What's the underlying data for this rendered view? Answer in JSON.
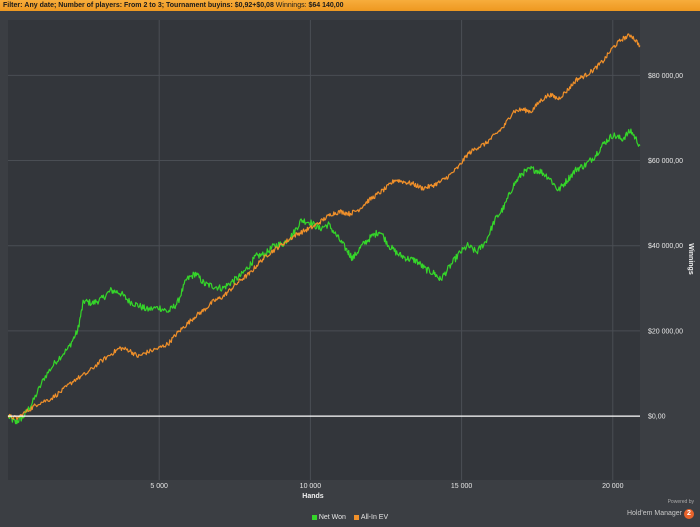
{
  "filter": {
    "label": "Filter:",
    "date": "Any date;",
    "players": "Number of players: From 2 to 3;",
    "buyins": "Tournament buyins: $0,92+$0,08",
    "winnings_label": "Winnings:",
    "winnings_value": "$64 140,00"
  },
  "footer": {
    "powered_by": "Powered by",
    "brand": "Hold'em Manager",
    "brand_badge": "2"
  },
  "chart_data": {
    "type": "line",
    "xlabel": "Hands",
    "ylabel": "Winnings",
    "xlim": [
      0,
      20900
    ],
    "ylim": [
      -15000,
      93000
    ],
    "x_ticks": [
      5000,
      10000,
      15000,
      20000
    ],
    "x_tick_labels": [
      "5 000",
      "10 000",
      "15 000",
      "20 000"
    ],
    "y_ticks": [
      0,
      20000,
      40000,
      60000,
      80000
    ],
    "y_tick_labels": [
      "$0,00",
      "$20 000,00",
      "$40 000,00",
      "$60 000,00",
      "$80 000,00"
    ],
    "grid": true,
    "zero_line": true,
    "legend_position": "bottom-center",
    "series": [
      {
        "name": "Net Won",
        "color": "#35d62a",
        "points": [
          [
            0,
            0
          ],
          [
            250,
            -1500
          ],
          [
            500,
            -200
          ],
          [
            800,
            3000
          ],
          [
            1200,
            9000
          ],
          [
            1600,
            13000
          ],
          [
            2000,
            16000
          ],
          [
            2300,
            20000
          ],
          [
            2500,
            27000
          ],
          [
            2800,
            26500
          ],
          [
            3100,
            27500
          ],
          [
            3400,
            29500
          ],
          [
            3700,
            29000
          ],
          [
            4000,
            27000
          ],
          [
            4300,
            26000
          ],
          [
            4600,
            25000
          ],
          [
            5000,
            25500
          ],
          [
            5300,
            24500
          ],
          [
            5600,
            26500
          ],
          [
            5900,
            32000
          ],
          [
            6200,
            33500
          ],
          [
            6500,
            31000
          ],
          [
            6800,
            30500
          ],
          [
            7100,
            30000
          ],
          [
            7400,
            31500
          ],
          [
            7700,
            33000
          ],
          [
            8000,
            35500
          ],
          [
            8200,
            37500
          ],
          [
            8500,
            38000
          ],
          [
            8800,
            40000
          ],
          [
            9100,
            40500
          ],
          [
            9400,
            42500
          ],
          [
            9700,
            46000
          ],
          [
            10000,
            45500
          ],
          [
            10300,
            44000
          ],
          [
            10600,
            45000
          ],
          [
            10900,
            42000
          ],
          [
            11200,
            39000
          ],
          [
            11400,
            37000
          ],
          [
            11700,
            40000
          ],
          [
            12000,
            42000
          ],
          [
            12300,
            43500
          ],
          [
            12600,
            40000
          ],
          [
            12900,
            38000
          ],
          [
            13200,
            37000
          ],
          [
            13500,
            36500
          ],
          [
            13800,
            34500
          ],
          [
            14100,
            33500
          ],
          [
            14300,
            32000
          ],
          [
            14600,
            35000
          ],
          [
            14900,
            38000
          ],
          [
            15200,
            40000
          ],
          [
            15500,
            38500
          ],
          [
            15800,
            41000
          ],
          [
            16100,
            46000
          ],
          [
            16400,
            49000
          ],
          [
            16700,
            54000
          ],
          [
            17000,
            57000
          ],
          [
            17300,
            58000
          ],
          [
            17600,
            57500
          ],
          [
            17900,
            56000
          ],
          [
            18200,
            53000
          ],
          [
            18500,
            55500
          ],
          [
            18800,
            58000
          ],
          [
            19100,
            59000
          ],
          [
            19400,
            61000
          ],
          [
            19700,
            64000
          ],
          [
            20000,
            66000
          ],
          [
            20300,
            65000
          ],
          [
            20600,
            67000
          ],
          [
            20900,
            63500
          ]
        ]
      },
      {
        "name": "All-In EV",
        "color": "#f0902a",
        "points": [
          [
            0,
            0
          ],
          [
            300,
            -500
          ],
          [
            700,
            1500
          ],
          [
            1000,
            3000
          ],
          [
            1400,
            4000
          ],
          [
            1800,
            6000
          ],
          [
            2200,
            8500
          ],
          [
            2600,
            10000
          ],
          [
            3000,
            12500
          ],
          [
            3400,
            14500
          ],
          [
            3700,
            16000
          ],
          [
            4000,
            15500
          ],
          [
            4300,
            14000
          ],
          [
            4600,
            15000
          ],
          [
            5000,
            16000
          ],
          [
            5300,
            17000
          ],
          [
            5600,
            19500
          ],
          [
            5900,
            21500
          ],
          [
            6200,
            23500
          ],
          [
            6500,
            25000
          ],
          [
            6800,
            27000
          ],
          [
            7100,
            28000
          ],
          [
            7400,
            30000
          ],
          [
            7700,
            32000
          ],
          [
            8000,
            33500
          ],
          [
            8300,
            36000
          ],
          [
            8600,
            38000
          ],
          [
            8900,
            39500
          ],
          [
            9200,
            41000
          ],
          [
            9500,
            42500
          ],
          [
            9800,
            43500
          ],
          [
            10100,
            44500
          ],
          [
            10400,
            46000
          ],
          [
            10700,
            47500
          ],
          [
            11000,
            48000
          ],
          [
            11300,
            47500
          ],
          [
            11600,
            48500
          ],
          [
            11900,
            50500
          ],
          [
            12200,
            52000
          ],
          [
            12500,
            53500
          ],
          [
            12800,
            55500
          ],
          [
            13100,
            55000
          ],
          [
            13400,
            54500
          ],
          [
            13700,
            53500
          ],
          [
            14000,
            54000
          ],
          [
            14300,
            55000
          ],
          [
            14600,
            56500
          ],
          [
            14900,
            58500
          ],
          [
            15200,
            61500
          ],
          [
            15500,
            63000
          ],
          [
            15800,
            64000
          ],
          [
            16100,
            66000
          ],
          [
            16400,
            68000
          ],
          [
            16700,
            71500
          ],
          [
            17000,
            72000
          ],
          [
            17300,
            71500
          ],
          [
            17600,
            74000
          ],
          [
            17900,
            75500
          ],
          [
            18200,
            74500
          ],
          [
            18500,
            76500
          ],
          [
            18800,
            79000
          ],
          [
            19100,
            80000
          ],
          [
            19400,
            81500
          ],
          [
            19700,
            83500
          ],
          [
            20000,
            86500
          ],
          [
            20300,
            88500
          ],
          [
            20600,
            89500
          ],
          [
            20900,
            87000
          ]
        ]
      }
    ]
  }
}
